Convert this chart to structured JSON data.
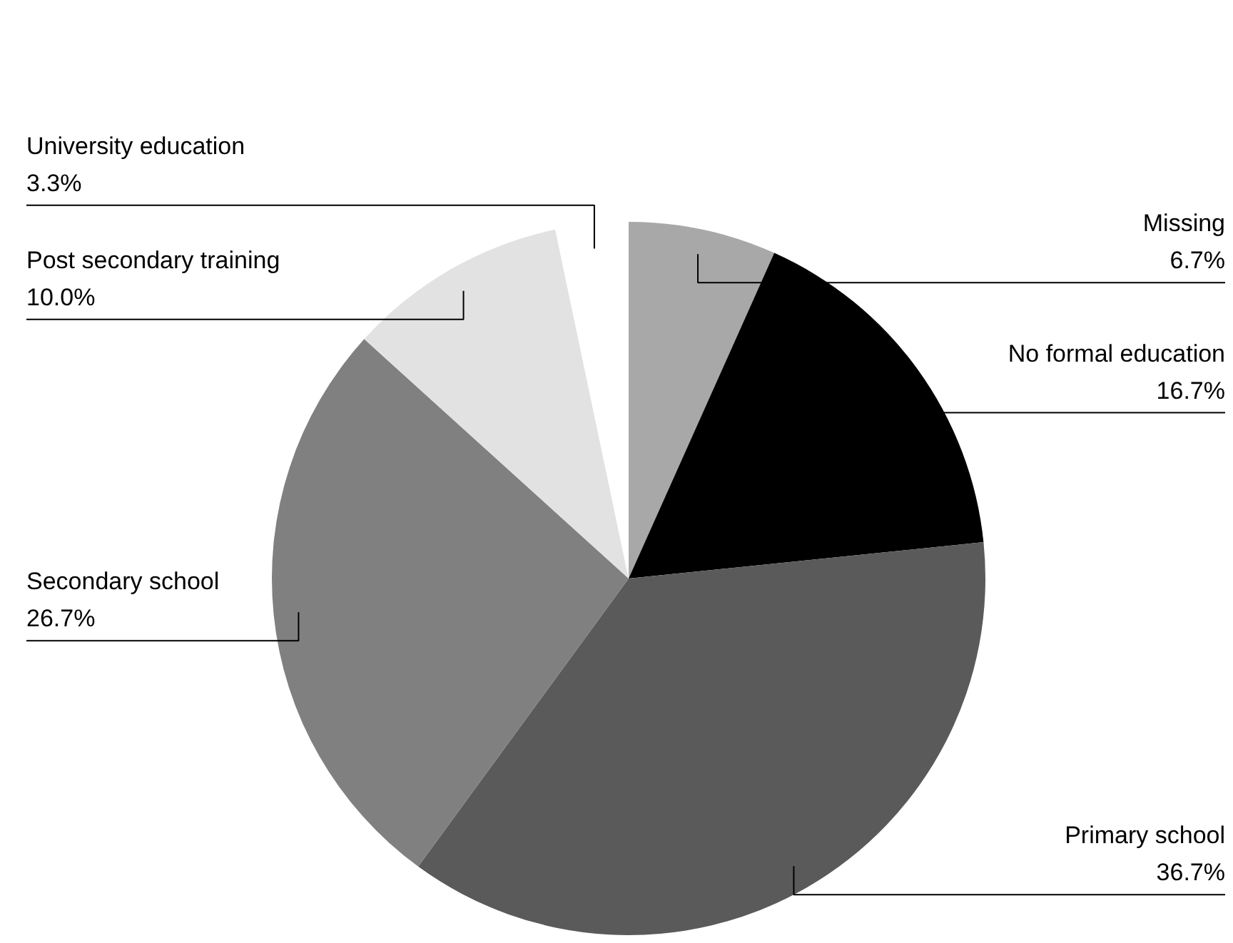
{
  "chart_data": {
    "type": "pie",
    "categories": [
      "Missing",
      "No formal education",
      "Primary school",
      "Secondary school",
      "Post secondary training",
      "University education"
    ],
    "values": [
      6.7,
      16.7,
      36.7,
      26.7,
      10.0,
      3.3
    ],
    "value_labels": [
      "6.7%",
      "16.7%",
      "36.7%",
      "26.7%",
      "10.0%",
      "3.3%"
    ],
    "colors": [
      "#a8a8a8",
      "#000000",
      "#5a5a5a",
      "#808080",
      "#e2e2e2",
      "#ffffff"
    ],
    "legend": false
  }
}
